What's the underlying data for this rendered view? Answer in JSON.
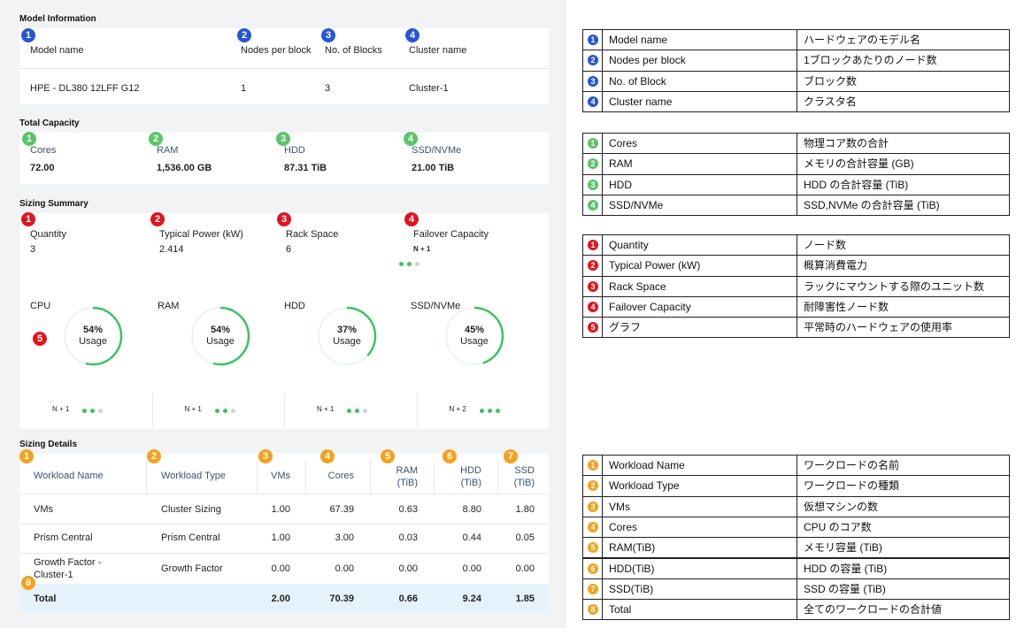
{
  "model_information": {
    "title": "Model Information",
    "color": "#2456d6",
    "fields": [
      {
        "badge": "1",
        "label": "Model name",
        "value": "HPE - DL380 12LFF G12"
      },
      {
        "badge": "2",
        "label": "Nodes per block",
        "value": "1"
      },
      {
        "badge": "3",
        "label": "No. of Blocks",
        "value": "3"
      },
      {
        "badge": "4",
        "label": "Cluster name",
        "value": "Cluster-1"
      }
    ]
  },
  "total_capacity": {
    "title": "Total Capacity",
    "color": "#5cc46a",
    "fields": [
      {
        "badge": "1",
        "label": "Cores",
        "value": "72.00"
      },
      {
        "badge": "2",
        "label": "RAM",
        "value": "1,536.00 GB"
      },
      {
        "badge": "3",
        "label": "HDD",
        "value": "87.31 TiB"
      },
      {
        "badge": "4",
        "label": "SSD/NVMe",
        "value": "21.00 TiB"
      }
    ]
  },
  "sizing_summary": {
    "title": "Sizing Summary",
    "color": "#e0141e",
    "fields": [
      {
        "badge": "1",
        "label": "Quantity",
        "value": "3"
      },
      {
        "badge": "2",
        "label": "Typical Power (kW)",
        "value": "2.414"
      },
      {
        "badge": "3",
        "label": "Rack Space",
        "value": "6"
      },
      {
        "badge": "4",
        "label": "Failover Capacity",
        "value": "N + 1"
      }
    ],
    "chart_badge": "5",
    "usage_label": "Usage",
    "charts": [
      {
        "label": "CPU",
        "percent": 54,
        "percent_label": "54%",
        "failover": "N + 1"
      },
      {
        "label": "RAM",
        "percent": 54,
        "percent_label": "54%",
        "failover": "N + 1"
      },
      {
        "label": "HDD",
        "percent": 37,
        "percent_label": "37%",
        "failover": "N + 1"
      },
      {
        "label": "SSD/NVMe",
        "percent": 45,
        "percent_label": "45%",
        "failover": "N + 2"
      }
    ]
  },
  "sizing_details": {
    "title": "Sizing Details",
    "color": "#f4a21c",
    "total_badge": "8",
    "columns": [
      {
        "badge": "1",
        "label": "Workload Name"
      },
      {
        "badge": "2",
        "label": "Workload Type"
      },
      {
        "badge": "3",
        "label": "VMs"
      },
      {
        "badge": "4",
        "label": "Cores"
      },
      {
        "badge": "5",
        "label": "RAM (TiB)"
      },
      {
        "badge": "6",
        "label": "HDD (TiB)"
      },
      {
        "badge": "7",
        "label": "SSD (TiB)"
      }
    ],
    "rows": [
      [
        "VMs",
        "Cluster Sizing",
        "1.00",
        "67.39",
        "0.63",
        "8.80",
        "1.80"
      ],
      [
        "Prism Central",
        "Prism Central",
        "1.00",
        "3.00",
        "0.03",
        "0.44",
        "0.05"
      ],
      [
        "Growth Factor - Cluster-1",
        "Growth Factor",
        "0.00",
        "0.00",
        "0.00",
        "0.00",
        "0.00"
      ]
    ],
    "total": [
      "Total",
      null,
      "2.00",
      "70.39",
      "0.66",
      "9.24",
      "1.85"
    ]
  },
  "legend_tables": [
    {
      "color": "#2456d6",
      "rows": [
        [
          "1",
          "Model name",
          "ハードウェアのモデル名"
        ],
        [
          "2",
          "Nodes per block",
          "1ブロックあたりのノード数"
        ],
        [
          "3",
          "No. of Block",
          "ブロック数"
        ],
        [
          "4",
          "Cluster name",
          "クラスタ名"
        ]
      ]
    },
    {
      "color": "#5cc46a",
      "rows": [
        [
          "1",
          "Cores",
          "物理コア数の合計"
        ],
        [
          "2",
          "RAM",
          "メモリの合計容量 (GB)"
        ],
        [
          "3",
          "HDD",
          "HDD の合計容量 (TiB)"
        ],
        [
          "4",
          "SSD/NVMe",
          "SSD,NVMe の合計容量 (TiB)"
        ]
      ]
    },
    {
      "color": "#e0141e",
      "rows": [
        [
          "1",
          "Quantity",
          "ノード数"
        ],
        [
          "2",
          "Typical Power (kW)",
          "概算消費電力"
        ],
        [
          "3",
          "Rack Space",
          "ラックにマウントする際のユニット数"
        ],
        [
          "4",
          "Failover Capacity",
          "耐障害性ノード数"
        ],
        [
          "5",
          "グラフ",
          "平常時のハードウェアの使用率"
        ]
      ]
    },
    {
      "color": "#f4a21c",
      "rows": [
        [
          "1",
          "Workload Name",
          "ワークロードの名前"
        ],
        [
          "2",
          "Workload Type",
          "ワークロードの種類"
        ],
        [
          "3",
          "VMs",
          "仮想マシンの数"
        ],
        [
          "4",
          "Cores",
          "CPU のコア数"
        ],
        [
          "5",
          "RAM(TiB)",
          "メモリ容量 (TiB)"
        ],
        [
          "6",
          "HDD(TiB)",
          "HDD の容量 (TiB)"
        ],
        [
          "7",
          "SSD(TiB)",
          "SSD の容量 (TiB)"
        ],
        [
          "8",
          "Total",
          "全てのワークロードの合計値"
        ]
      ]
    }
  ]
}
